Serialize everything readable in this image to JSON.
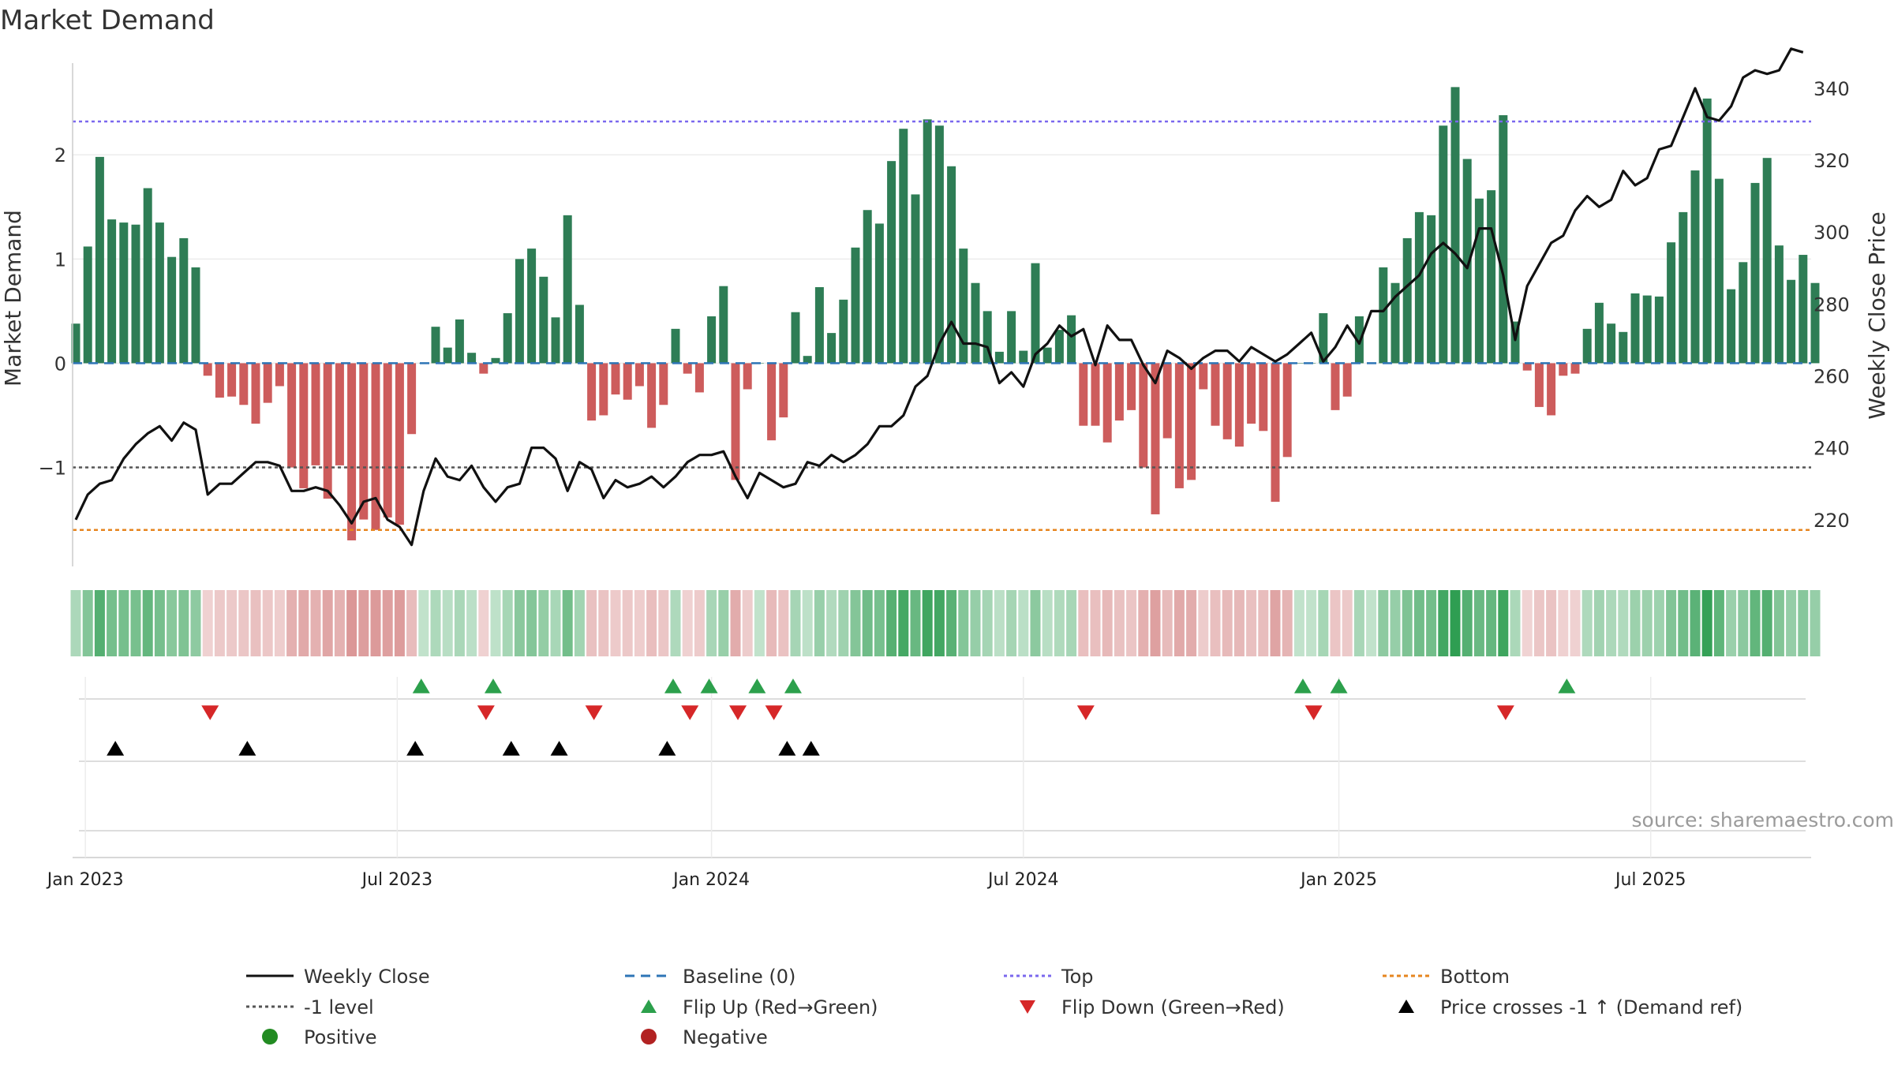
{
  "chart_data": {
    "type": "bar",
    "title": "Market Demand",
    "source_note": "source: sharemaestro.com",
    "ylabel_left": "Market Demand",
    "ylabel_right": "Weekly Close Price",
    "ylim_left": [
      -1.95,
      2.88
    ],
    "ylim_right": [
      207,
      347
    ],
    "left_ticks": [
      2,
      1,
      0,
      -1
    ],
    "left_tick_labels": [
      "2",
      "1",
      "0",
      "−1"
    ],
    "right_ticks": [
      340,
      320,
      300,
      280,
      260,
      240,
      220
    ],
    "x_tick_labels": [
      "Jan 2023",
      "Jul 2023",
      "Jan 2024",
      "Jul 2024",
      "Jan 2025",
      "Jul 2025"
    ],
    "x_tick_weeks": [
      0.8,
      26.8,
      53.0,
      79.0,
      105.3,
      131.3
    ],
    "reference_lines": {
      "top": 2.32,
      "baseline": 0,
      "minus_one": -1,
      "bottom": -1.6
    },
    "weeks": 145,
    "demand": [
      0.38,
      1.12,
      1.98,
      1.38,
      1.35,
      1.33,
      1.68,
      1.35,
      1.02,
      1.2,
      0.92,
      -0.12,
      -0.33,
      -0.32,
      -0.4,
      -0.58,
      -0.38,
      -0.22,
      -1.0,
      -1.2,
      -0.98,
      -1.3,
      -0.98,
      -1.7,
      -1.5,
      -1.6,
      -1.48,
      -1.55,
      -0.68,
      0.0,
      0.35,
      0.15,
      0.42,
      0.1,
      -0.1,
      0.05,
      0.48,
      1.0,
      1.1,
      0.83,
      0.44,
      1.42,
      0.56,
      -0.55,
      -0.5,
      -0.3,
      -0.35,
      -0.22,
      -0.62,
      -0.4,
      0.33,
      -0.1,
      -0.28,
      0.45,
      0.74,
      -1.12,
      -0.25,
      0.0,
      -0.74,
      -0.52,
      0.49,
      0.07,
      0.73,
      0.29,
      0.61,
      1.11,
      1.47,
      1.34,
      1.94,
      2.25,
      1.62,
      2.34,
      2.28,
      1.89,
      1.1,
      0.77,
      0.5,
      0.11,
      0.5,
      0.12,
      0.96,
      0.15,
      0.32,
      0.46,
      -0.6,
      -0.6,
      -0.76,
      -0.55,
      -0.45,
      -1.0,
      -1.45,
      -0.72,
      -1.2,
      -1.12,
      -0.25,
      -0.6,
      -0.73,
      -0.8,
      -0.58,
      -0.65,
      -1.33,
      -0.9,
      0.0,
      0.0,
      0.48,
      -0.45,
      -0.32,
      0.45,
      0.0,
      0.92,
      0.77,
      1.2,
      1.45,
      1.42,
      2.28,
      2.65,
      1.96,
      1.58,
      1.66,
      2.38,
      0.4,
      -0.07,
      -0.42,
      -0.5,
      -0.12,
      -0.1,
      0.33,
      0.58,
      0.38,
      0.3,
      0.67,
      0.65,
      0.64,
      1.16,
      1.45,
      1.85,
      2.54,
      1.77,
      0.71,
      0.97,
      1.73,
      1.97,
      1.13,
      0.8,
      1.04,
      0.77
    ],
    "weekly_close": [
      220,
      227,
      230,
      231,
      237,
      241,
      244,
      246,
      242,
      247,
      245,
      227,
      230,
      230,
      233,
      236,
      236,
      235,
      228,
      228,
      229,
      228,
      224,
      219,
      225,
      226,
      220,
      218,
      213,
      228,
      237,
      232,
      231,
      235,
      229,
      225,
      229,
      230,
      240,
      240,
      237,
      228,
      236,
      234,
      226,
      231,
      229,
      230,
      232,
      229,
      232,
      236,
      238,
      238,
      239,
      232,
      226,
      233,
      231,
      229,
      230,
      236,
      235,
      238,
      236,
      238,
      241,
      246,
      246,
      249,
      257,
      260,
      269,
      275,
      269,
      269,
      268,
      258,
      261,
      257,
      266,
      269,
      274,
      271,
      273,
      263,
      274,
      270,
      270,
      263,
      258,
      267,
      265,
      262,
      265,
      267,
      267,
      264,
      268,
      266,
      264,
      266,
      269,
      272,
      264,
      268,
      274,
      269,
      278,
      278,
      282,
      285,
      288,
      294,
      297,
      294,
      290,
      301,
      301,
      288,
      270,
      285,
      291,
      297,
      299,
      306,
      310,
      307,
      309,
      317,
      313,
      315,
      323,
      324,
      332,
      340,
      332,
      331,
      335,
      343,
      345,
      344,
      345,
      351,
      350
    ],
    "flip_up_weeks": [
      28.8,
      34.8,
      49.8,
      52.8,
      56.8,
      59.8,
      102.3,
      105.3,
      124.3
    ],
    "flip_down_weeks": [
      11.2,
      34.2,
      43.2,
      51.2,
      55.2,
      58.2,
      84.2,
      103.2,
      119.2
    ],
    "price_cross_weeks": [
      3.3,
      14.3,
      28.3,
      36.3,
      40.3,
      49.3,
      59.3,
      61.3
    ],
    "legend": [
      "Weekly Close",
      "Baseline (0)",
      "Top",
      "Bottom",
      "-1 level",
      "Flip Up (Red→Green)",
      "Flip Down (Green→Red)",
      "Price crosses -1 ↑ (Demand ref)",
      "Positive",
      "Negative"
    ]
  },
  "colors": {
    "positive_bar": "#2e7d55",
    "negative_bar": "#cd5c5c",
    "price_line": "#111111",
    "baseline": "#2e75b6",
    "top_line": "#7b68ee",
    "bottom_line": "#e6851f",
    "minus_one_line": "#555555",
    "flip_up": "#2ca04c",
    "flip_down": "#d62728",
    "price_cross": "#000000",
    "positive_dot": "#228b22",
    "negative_dot": "#b22222"
  }
}
